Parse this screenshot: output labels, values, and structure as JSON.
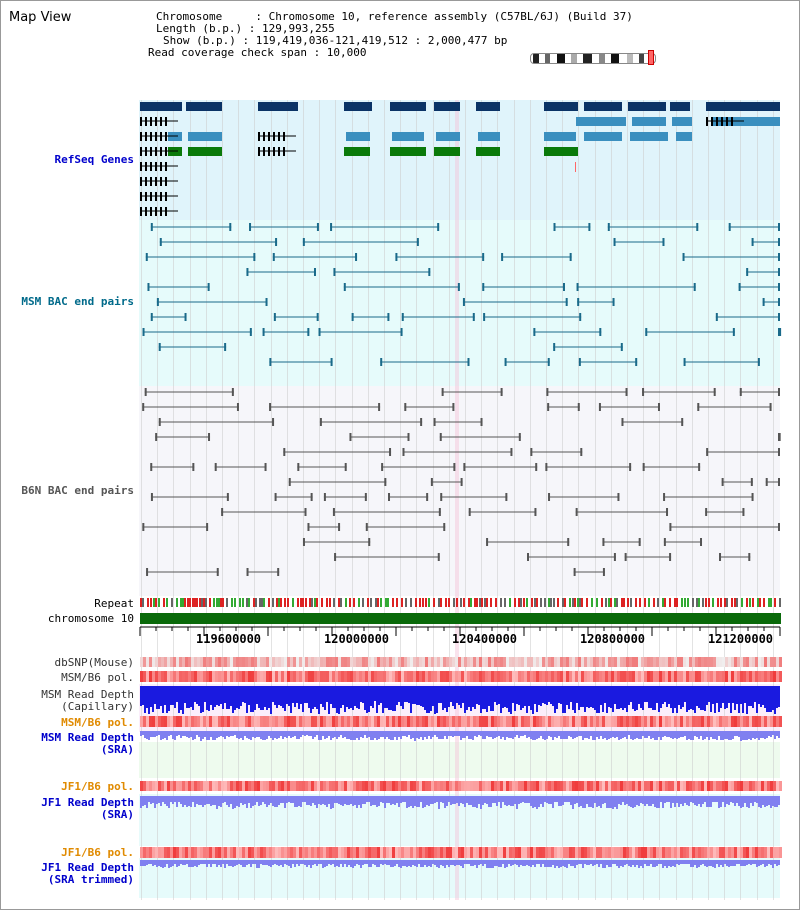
{
  "header": {
    "title": "Map View",
    "chromosome": "Chromosome     : Chromosome 10, reference assembly (C57BL/6J) (Build 37)",
    "length": "Length (b.p.) : 129,993,255",
    "show": "Show (b.p.) : 119,419,036-121,419,512 : 2,000,477 bp",
    "coverage": "Read coverage check span : 10,000"
  },
  "tracks": {
    "refseq": "RefSeq Genes",
    "msm_bac": "MSM BAC end pairs",
    "b6n_bac": "B6N BAC end pairs",
    "repeat": "Repeat",
    "chromosome": "chromosome 10",
    "dbsnp": "dbSNP(Mouse)",
    "msm_b6_pol": "MSM/B6 pol.",
    "msm_read_depth_cap_1": "MSM Read Depth",
    "msm_read_depth_cap_2": "(Capillary)",
    "msm_b6_pol_2": "MSM/B6 pol.",
    "msm_read_depth_sra_1": "MSM Read Depth",
    "msm_read_depth_sra_2": "(SRA)",
    "jf1_b6_pol": "JF1/B6 pol.",
    "jf1_read_depth_sra_1": "JF1 Read Depth",
    "jf1_read_depth_sra_2": "(SRA)",
    "jf1_b6_pol_2": "JF1/B6 pol.",
    "jf1_read_depth_trim_1": "JF1 Read Depth",
    "jf1_read_depth_trim_2": "(SRA trimmed)"
  },
  "axis": {
    "ticks": [
      "119600000",
      "120000000",
      "120400000",
      "120800000",
      "121200000"
    ]
  },
  "colors": {
    "refseq_bg": "#e0f4fb",
    "msm_bg": "#e6fbfb",
    "b6n_bg": "#f7f7fb",
    "gene_dark": "#0a3366",
    "gene_mid": "#3a8fbf",
    "gene_green": "#0a7a0a",
    "label_blue": "#0000cc",
    "label_teal": "#006a8a",
    "label_orange": "#e08a00",
    "chrom_green": "#0a6a0a"
  }
}
